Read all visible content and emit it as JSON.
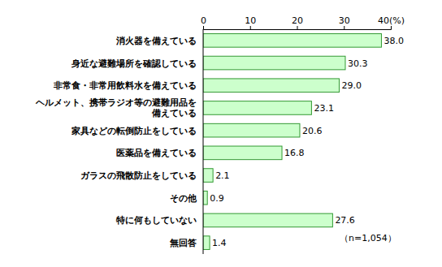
{
  "chart_data": {
    "type": "bar",
    "orientation": "horizontal",
    "categories": [
      "消火器を備えている",
      "身近な避難場所を確認している",
      "非常食・非常用飲料水を備えている",
      "ヘルメット、携帯ラジオ等の避難用品を備えている",
      "家具などの転倒防止をしている",
      "医薬品を備えている",
      "ガラスの飛散防止をしている",
      "その他",
      "特に何もしていない",
      "無回答"
    ],
    "values": [
      38.0,
      30.3,
      29.0,
      23.1,
      20.6,
      16.8,
      2.1,
      0.9,
      27.6,
      1.4
    ],
    "value_labels": [
      "38.0",
      "30.3",
      "29.0",
      "23.1",
      "20.6",
      "16.8",
      "2.1",
      "0.9",
      "27.6",
      "1.4"
    ],
    "data_labels": true,
    "color": "#ccffcc",
    "xlim": [
      0,
      40
    ],
    "xticks": [
      0,
      10,
      20,
      30,
      {
        "value": 40,
        "label": "40(%)"
      }
    ],
    "grid": false,
    "annotations": [
      "（n=1,054）"
    ]
  }
}
